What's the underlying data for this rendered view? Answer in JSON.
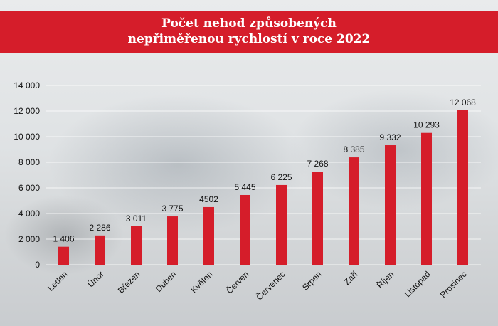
{
  "colors": {
    "banner": "#d51d2a",
    "bar": "#d51d2a",
    "title_text": "#ffffff"
  },
  "chart_data": {
    "type": "bar",
    "title": "Počet nehod způsobených\nnepřiměřenou rychlostí v roce 2022",
    "xlabel": "",
    "ylabel": "",
    "ylim": [
      0,
      14000
    ],
    "yticks": [
      "0",
      "2 000",
      "4 000",
      "6 000",
      "8 000",
      "10 000",
      "12 000",
      "14 000"
    ],
    "ytick_values": [
      0,
      2000,
      4000,
      6000,
      8000,
      10000,
      12000,
      14000
    ],
    "grid": "horizontal",
    "legend": "none",
    "categories": [
      "Leden",
      "Únor",
      "Březen",
      "Duben",
      "Květen",
      "Červen",
      "Červenec",
      "Srpen",
      "Září",
      "Říjen",
      "Listopad",
      "Prosinec"
    ],
    "values": [
      1406,
      2286,
      3011,
      3775,
      4502,
      5445,
      6225,
      7268,
      8385,
      9332,
      10293,
      12068
    ],
    "data_labels": [
      "1 406",
      "2 286",
      "3 011",
      "3 775",
      "4502",
      "5 445",
      "6 225",
      "7 268",
      "8 385",
      "9 332",
      "10 293",
      "12 068"
    ]
  }
}
